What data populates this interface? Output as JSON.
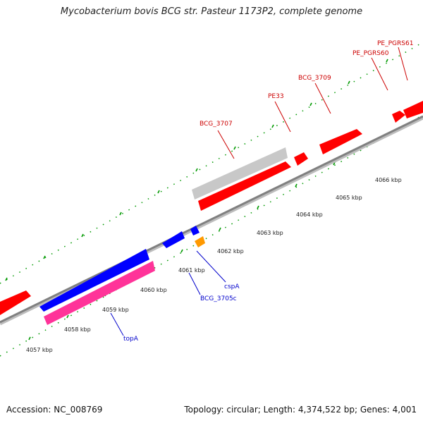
{
  "title": "Mycobacterium bovis BCG str. Pasteur 1173P2, complete genome",
  "footer": {
    "accession": "Accession: NC_008769",
    "summary": "Topology: circular; Length: 4,374,522 bp; Genes: 4,001"
  },
  "colors": {
    "forward_feature": "#ff0000",
    "reverse_feature": "#0000ff",
    "pseudo_feature": "#c8c8c8",
    "rna_feature": "#ff9900",
    "pink_feature": "#ff3399",
    "ruler": "#009900",
    "backbone": "#808080",
    "forward_label": "#cc0000",
    "reverse_label": "#0000cc"
  },
  "ruler": {
    "ticks": [
      "4057 kbp",
      "4058 kbp",
      "4059 kbp",
      "4060 kbp",
      "4061 kbp",
      "4062 kbp",
      "4063 kbp",
      "4064 kbp",
      "4065 kbp",
      "4066 kbp"
    ]
  },
  "genes": {
    "forward": [
      {
        "label": "BCG_3707"
      },
      {
        "label": "PE33"
      },
      {
        "label": "BCG_3709"
      },
      {
        "label": "PE_PGRS60"
      },
      {
        "label": "PE_PGRS61"
      }
    ],
    "reverse": [
      {
        "label": "BCG_3705c"
      },
      {
        "label": "cspA"
      },
      {
        "label": "topA"
      }
    ]
  }
}
